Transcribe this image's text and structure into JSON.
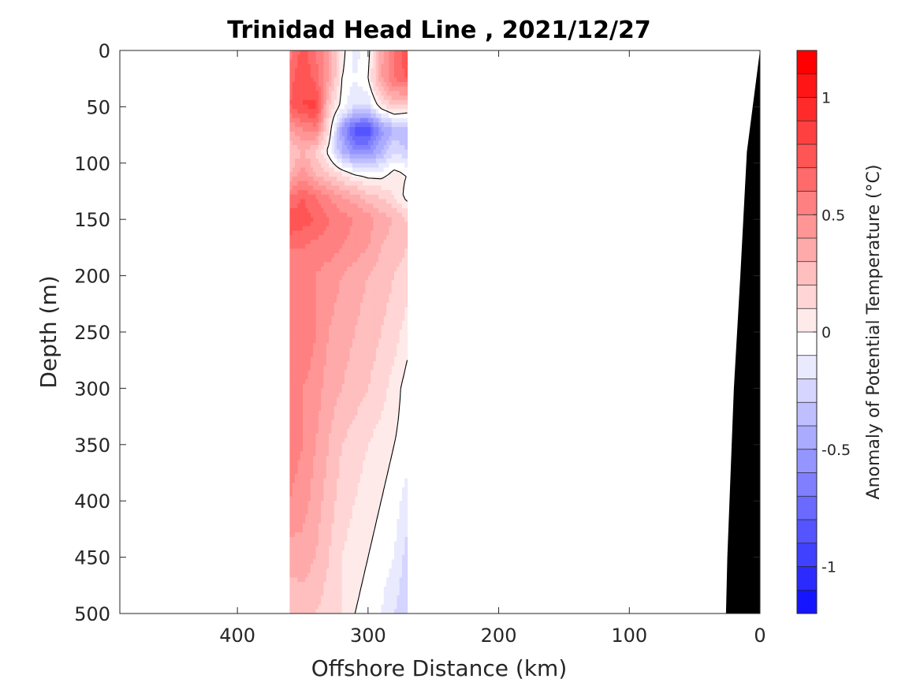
{
  "chart_data": {
    "type": "heatmap",
    "subtype": "filled-contour section",
    "title": "Trinidad Head Line , 2021/12/27",
    "xlabel": "Offshore Distance (km)",
    "ylabel": "Depth (m)",
    "xlim": [
      490,
      0
    ],
    "x_reversed": true,
    "ylim": [
      0,
      500
    ],
    "y_reversed": true,
    "x_ticks": [
      400,
      300,
      200,
      100,
      0
    ],
    "x_tick_labels": [
      "400",
      "300",
      "200",
      "100",
      "0"
    ],
    "y_ticks": [
      0,
      50,
      100,
      150,
      200,
      250,
      300,
      350,
      400,
      450,
      500
    ],
    "y_tick_labels": [
      "0",
      "50",
      "100",
      "150",
      "200",
      "250",
      "300",
      "350",
      "400",
      "450",
      "500"
    ],
    "grid": false,
    "data_extent_x": [
      360,
      270
    ],
    "colorbar": {
      "label": "Anomaly of Potential Temperature (°C)",
      "range": [
        -1.2,
        1.2
      ],
      "step": 0.1,
      "ticks": [
        1,
        0.5,
        0,
        -0.5,
        -1
      ],
      "tick_labels": [
        "1",
        "0.5",
        "0",
        "-0.5",
        "-1"
      ],
      "colors": [
        "#ff0000",
        "#ff1515",
        "#ff2b2b",
        "#ff4040",
        "#ff5555",
        "#ff6a6a",
        "#ff8080",
        "#ff9595",
        "#ffaaaa",
        "#ffbfbf",
        "#ffd5d5",
        "#ffeaea",
        "#ffffff",
        "#eaeaff",
        "#d5d5ff",
        "#bfbfff",
        "#aaaaff",
        "#9595ff",
        "#8080ff",
        "#6a6aff",
        "#5555ff",
        "#4040ff",
        "#2b2bff",
        "#1515ff"
      ]
    },
    "bathymetry": {
      "color": "#000000",
      "profile": [
        [
          0,
          0
        ],
        [
          10,
          90
        ],
        [
          15,
          200
        ],
        [
          20,
          300
        ],
        [
          25,
          450
        ],
        [
          26,
          500
        ]
      ]
    },
    "field_grid": {
      "x": [
        360,
        350,
        340,
        330,
        320,
        310,
        300,
        290,
        280,
        270
      ],
      "y": [
        0,
        25,
        50,
        70,
        90,
        110,
        130,
        150,
        175,
        200,
        250,
        300,
        350,
        400,
        450,
        500
      ],
      "values": [
        [
          0.55,
          0.75,
          0.6,
          0.4,
          0.05,
          -0.15,
          -0.05,
          0.35,
          0.6,
          0.8
        ],
        [
          0.65,
          0.8,
          0.65,
          0.4,
          0.0,
          -0.1,
          0.0,
          0.4,
          0.6,
          0.7
        ],
        [
          0.7,
          0.8,
          0.85,
          0.2,
          -0.05,
          -0.2,
          -0.2,
          0.05,
          0.2,
          0.15
        ],
        [
          0.4,
          0.5,
          0.55,
          0.1,
          -0.5,
          -0.85,
          -0.9,
          -0.55,
          -0.4,
          -0.4
        ],
        [
          0.2,
          0.3,
          0.2,
          -0.05,
          -0.4,
          -0.6,
          -0.6,
          -0.4,
          -0.2,
          -0.3
        ],
        [
          0.3,
          0.45,
          0.3,
          0.2,
          0.1,
          0.0,
          -0.05,
          -0.05,
          0.05,
          0.0
        ],
        [
          0.6,
          0.7,
          0.6,
          0.5,
          0.4,
          0.35,
          0.25,
          0.2,
          0.1,
          -0.05
        ],
        [
          0.8,
          0.75,
          0.7,
          0.6,
          0.55,
          0.5,
          0.45,
          0.35,
          0.3,
          0.2
        ],
        [
          0.6,
          0.6,
          0.55,
          0.55,
          0.5,
          0.45,
          0.4,
          0.3,
          0.25,
          0.2
        ],
        [
          0.55,
          0.55,
          0.5,
          0.45,
          0.4,
          0.35,
          0.3,
          0.25,
          0.2,
          0.15
        ],
        [
          0.55,
          0.6,
          0.5,
          0.4,
          0.35,
          0.3,
          0.25,
          0.2,
          0.15,
          0.05
        ],
        [
          0.55,
          0.5,
          0.45,
          0.35,
          0.3,
          0.25,
          0.2,
          0.15,
          0.05,
          -0.05
        ],
        [
          0.55,
          0.5,
          0.4,
          0.3,
          0.2,
          0.15,
          0.1,
          0.05,
          0.0,
          -0.05
        ],
        [
          0.5,
          0.45,
          0.35,
          0.25,
          0.15,
          0.1,
          0.05,
          0.0,
          -0.05,
          -0.15
        ],
        [
          0.35,
          0.35,
          0.3,
          0.2,
          0.1,
          0.05,
          0.0,
          -0.05,
          -0.1,
          -0.25
        ],
        [
          0.2,
          0.25,
          0.2,
          0.15,
          0.1,
          0.0,
          -0.05,
          -0.1,
          -0.2,
          -0.3
        ]
      ]
    }
  }
}
